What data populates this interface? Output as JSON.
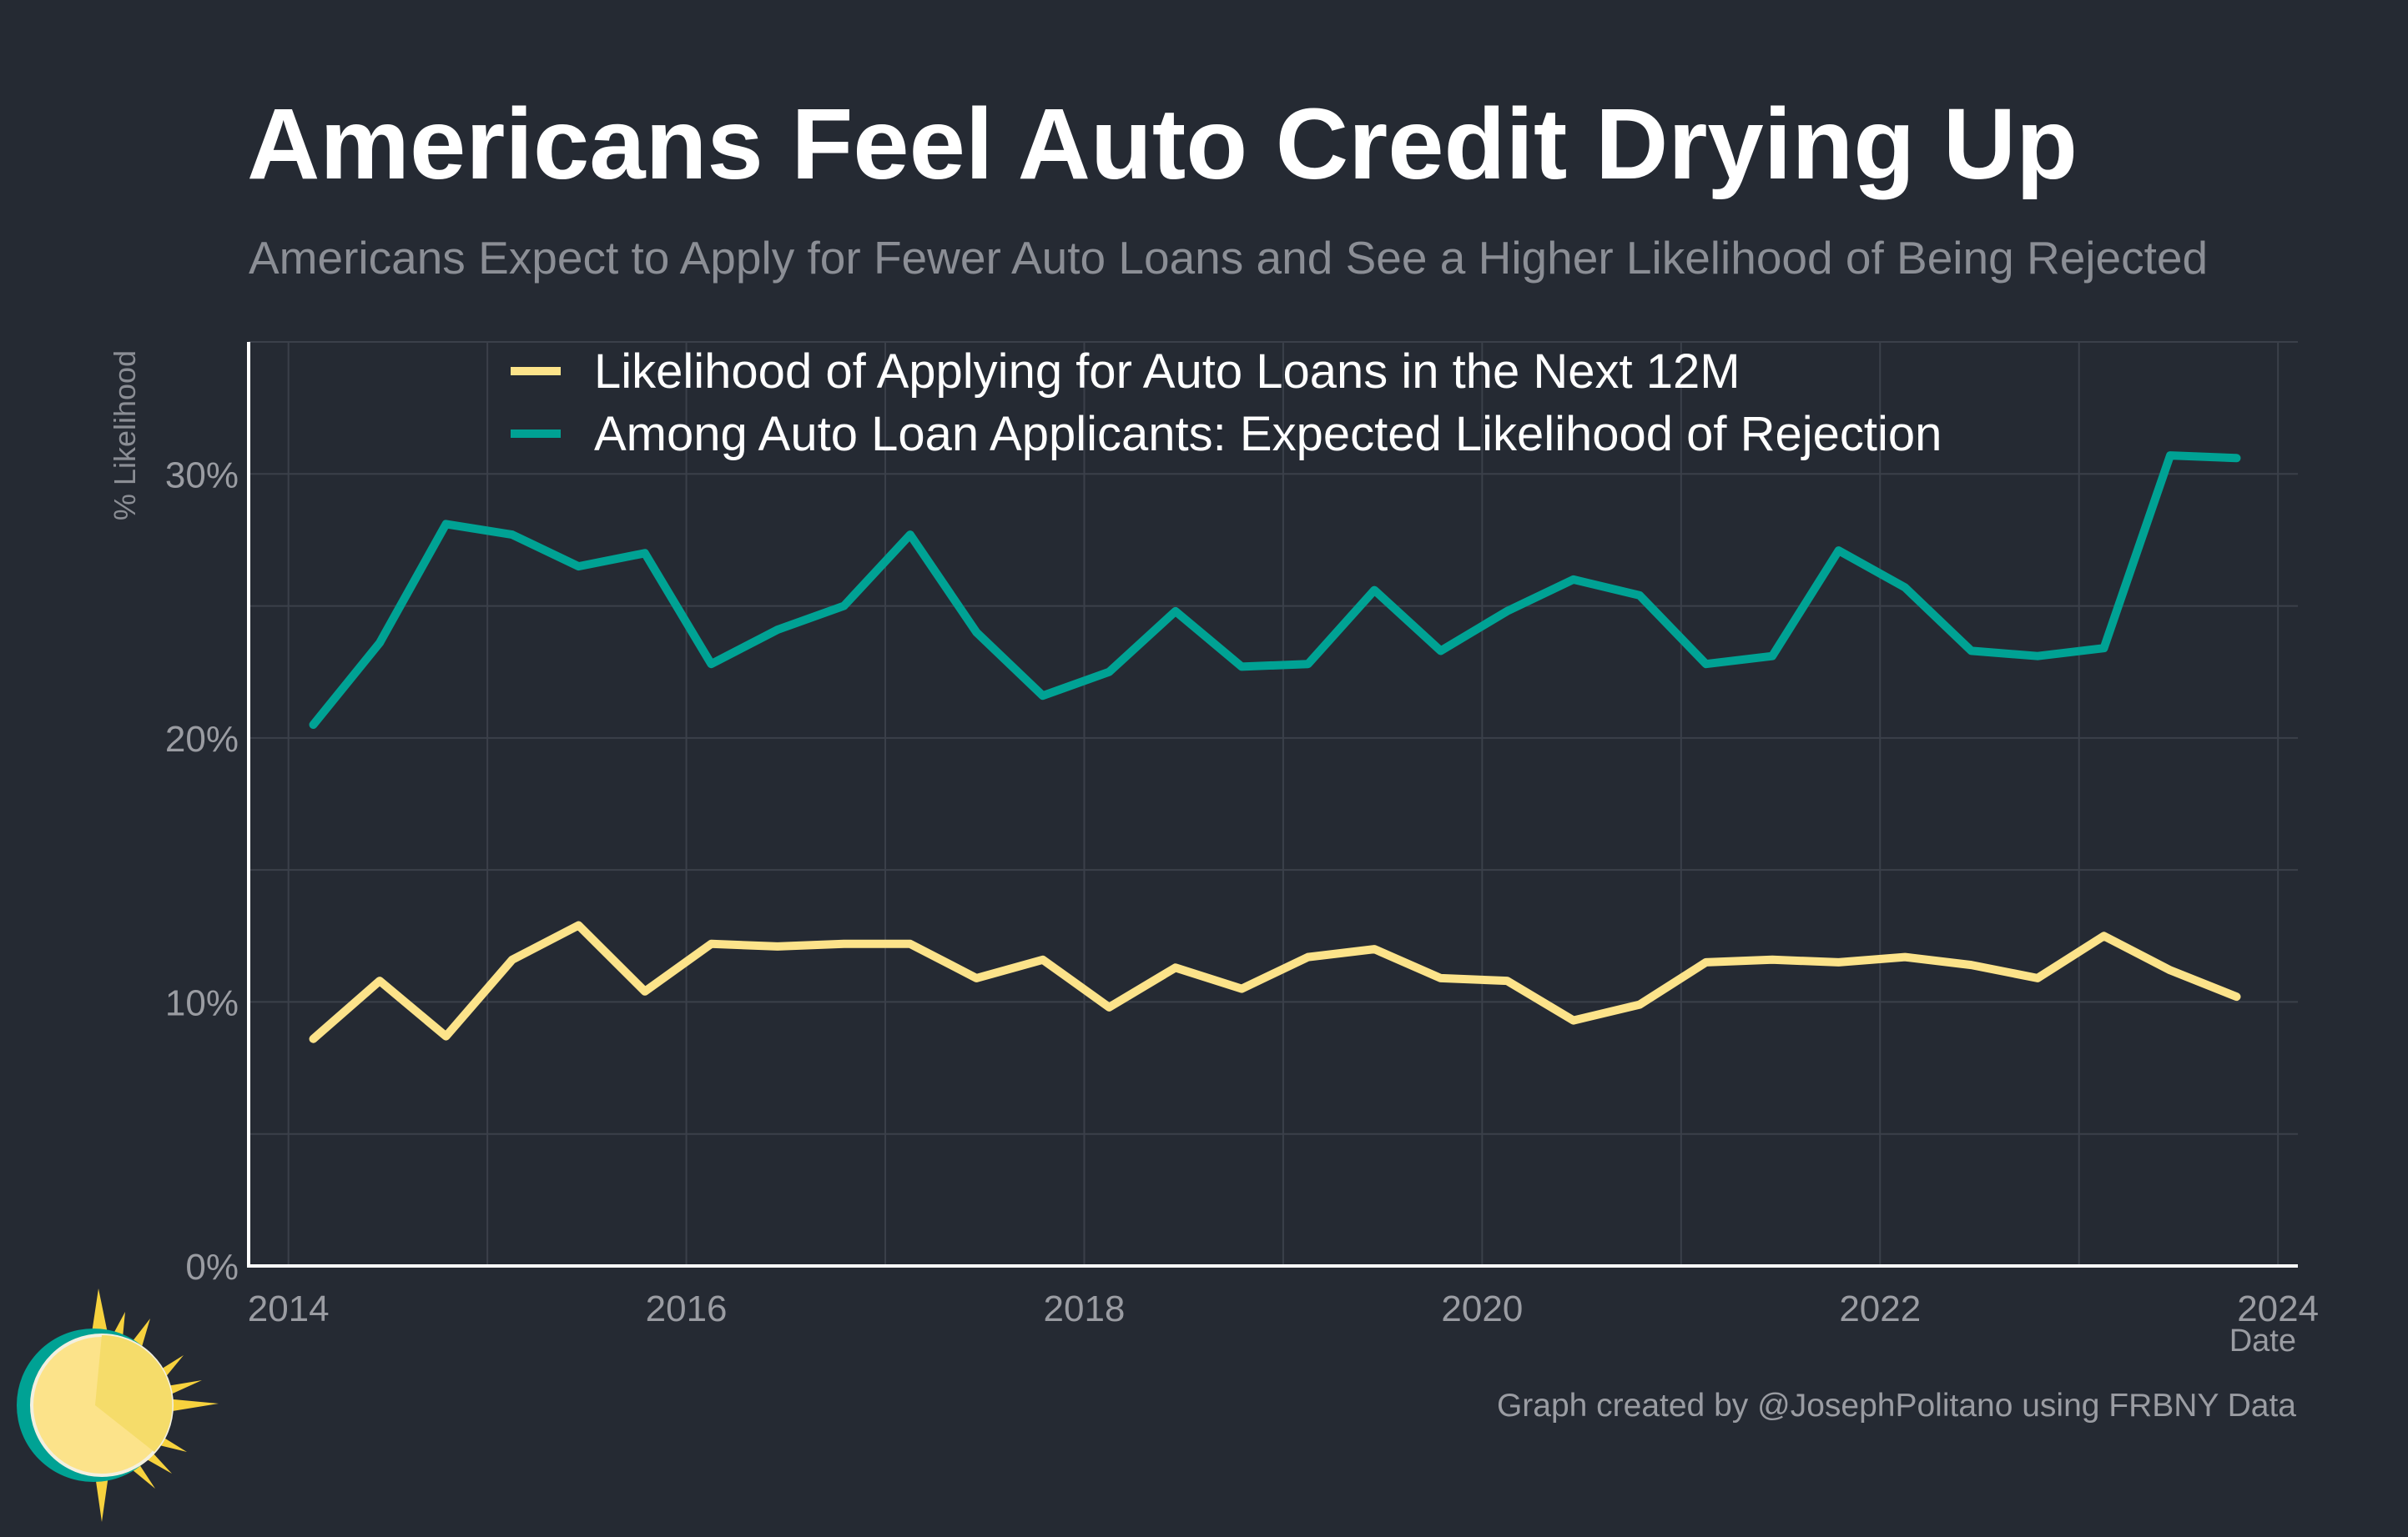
{
  "title": "Americans Feel Auto Credit Drying Up",
  "subtitle": "Americans Expect to Apply for Fewer Auto Loans and See a Higher Likelihood of Being Rejected",
  "caption": "Graph created by @JosephPolitano using FRBNY Data",
  "colors": {
    "background": "#252a33",
    "grid": "#3b404a",
    "axis": "#ffffff",
    "tick_text": "#9a9ca2"
  },
  "logo": {
    "icon": "sun-icon"
  },
  "chart_data": {
    "type": "line",
    "title": "Americans Feel Auto Credit Drying Up",
    "xlabel": "Date",
    "ylabel": "% Likelihood",
    "xlim": [
      2013.8,
      2024.1
    ],
    "ylim": [
      0,
      35
    ],
    "x_ticks": [
      2014,
      2016,
      2018,
      2020,
      2022,
      2024
    ],
    "x_tick_labels": [
      "2014",
      "2016",
      "2018",
      "2020",
      "2022",
      "2024"
    ],
    "y_ticks": [
      0,
      10,
      20,
      30
    ],
    "y_tick_labels": [
      "0%",
      "10%",
      "20%",
      "30%"
    ],
    "grid": true,
    "legend": "top",
    "x": [
      "2014-02",
      "2014-06",
      "2014-10",
      "2015-02",
      "2015-06",
      "2015-10",
      "2016-02",
      "2016-06",
      "2016-10",
      "2017-02",
      "2017-06",
      "2017-10",
      "2018-02",
      "2018-06",
      "2018-10",
      "2019-02",
      "2019-06",
      "2019-10",
      "2020-02",
      "2020-06",
      "2020-10",
      "2021-02",
      "2021-06",
      "2021-10",
      "2022-02",
      "2022-06",
      "2022-10",
      "2023-02",
      "2023-06",
      "2023-10"
    ],
    "series": [
      {
        "name": "Likelihood of Applying for Auto Loans in the Next 12M",
        "color": "#fce38a",
        "values": [
          8.6,
          10.8,
          8.7,
          11.6,
          12.9,
          10.4,
          12.2,
          12.1,
          12.2,
          12.2,
          10.9,
          11.6,
          9.8,
          11.3,
          10.5,
          11.7,
          12.0,
          10.9,
          10.8,
          9.3,
          9.9,
          11.5,
          11.6,
          11.5,
          11.7,
          11.4,
          10.9,
          12.5,
          11.2,
          10.2
        ]
      },
      {
        "name": "Among Auto Loan Applicants: Expected Likelihood of Rejection",
        "color": "#00a294",
        "values": [
          20.5,
          23.6,
          28.1,
          27.7,
          26.5,
          27.0,
          22.8,
          24.1,
          25.0,
          27.7,
          24.0,
          21.6,
          22.5,
          24.8,
          22.7,
          22.8,
          25.6,
          23.3,
          24.8,
          26.0,
          25.4,
          22.8,
          23.1,
          27.1,
          25.7,
          23.3,
          23.1,
          23.4,
          30.7,
          30.6
        ]
      }
    ]
  }
}
